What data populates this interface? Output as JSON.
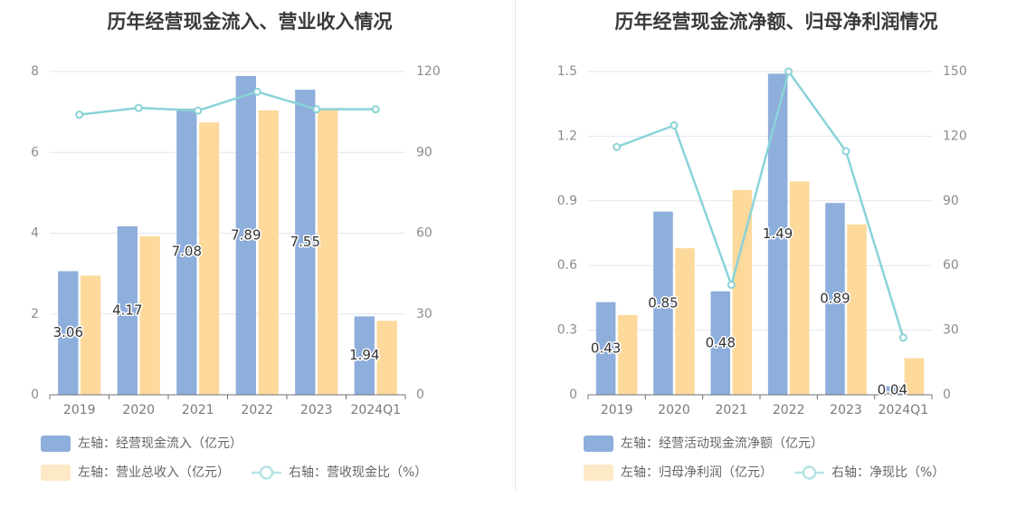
{
  "chart_data": [
    {
      "type": "bar",
      "title": "历年经营现金流入、营业收入情况",
      "categories": [
        "2019",
        "2020",
        "2021",
        "2022",
        "2023",
        "2024Q1"
      ],
      "y_left": {
        "range": [
          0,
          8
        ],
        "ticks": [
          "0",
          "2",
          "4",
          "6",
          "8"
        ]
      },
      "y_right": {
        "range": [
          0,
          120
        ],
        "ticks": [
          "0",
          "30",
          "60",
          "90",
          "120"
        ]
      },
      "series": [
        {
          "name": "左轴：经营现金流入（亿元）",
          "type": "bar",
          "axis": "left",
          "color": "#8eaedb",
          "values": [
            3.06,
            4.17,
            7.08,
            7.89,
            7.55,
            1.94
          ],
          "labels": [
            "3.06",
            "4.17",
            "7.08",
            "7.89",
            "7.55",
            "1.94"
          ]
        },
        {
          "name": "左轴：营业总收入（亿元）",
          "type": "bar",
          "axis": "left",
          "color": "#fdd99b",
          "values": [
            2.95,
            3.92,
            6.74,
            7.04,
            7.1,
            1.83
          ]
        },
        {
          "name": "右轴：营收现金比（%）",
          "type": "line",
          "axis": "right",
          "color": "#8ad3d8",
          "values": [
            104,
            106.5,
            105.5,
            112.5,
            106,
            106
          ]
        }
      ],
      "legend": "bottom",
      "grid": true
    },
    {
      "type": "bar",
      "title": "历年经营现金流净额、归母净利润情况",
      "categories": [
        "2019",
        "2020",
        "2021",
        "2022",
        "2023",
        "2024Q1"
      ],
      "y_left": {
        "range": [
          0,
          1.5
        ],
        "ticks": [
          "0",
          "0.3",
          "0.6",
          "0.9",
          "1.2",
          "1.5"
        ]
      },
      "y_right": {
        "range": [
          0,
          150
        ],
        "ticks": [
          "0",
          "30",
          "60",
          "90",
          "120",
          "150"
        ]
      },
      "series": [
        {
          "name": "左轴：经营活动现金流净额（亿元）",
          "type": "bar",
          "axis": "left",
          "color": "#8eaedb",
          "values": [
            0.43,
            0.85,
            0.48,
            1.49,
            0.89,
            0.04
          ],
          "labels": [
            "0.43",
            "0.85",
            "0.48",
            "1.49",
            "0.89",
            "0.04"
          ]
        },
        {
          "name": "左轴：归母净利润（亿元）",
          "type": "bar",
          "axis": "left",
          "color": "#fdd99b",
          "values": [
            0.37,
            0.68,
            0.95,
            0.99,
            0.79,
            0.17
          ]
        },
        {
          "name": "右轴：净现比（%）",
          "type": "line",
          "axis": "right",
          "color": "#8ad3d8",
          "values": [
            115,
            125,
            51,
            150,
            113,
            26.5
          ]
        }
      ],
      "legend": "bottom",
      "grid": true
    }
  ]
}
